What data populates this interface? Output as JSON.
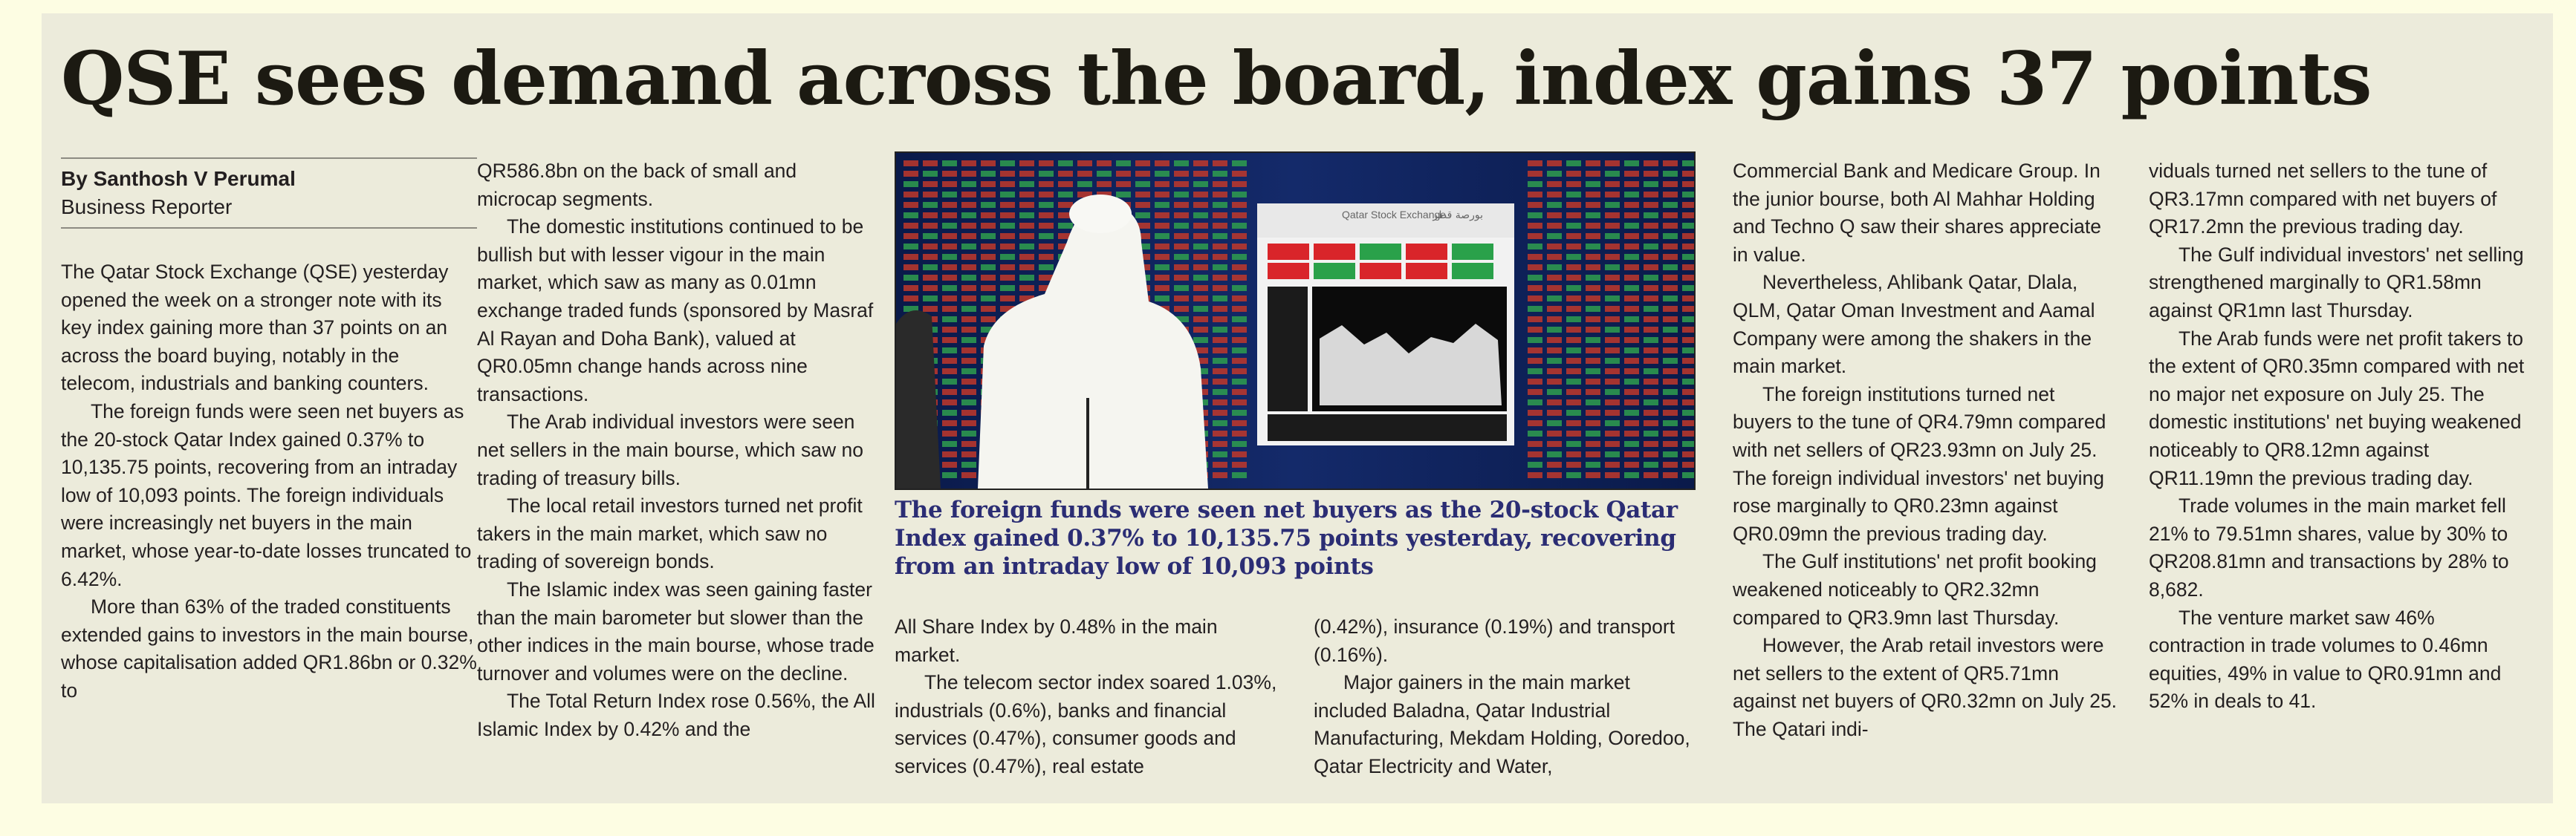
{
  "headline": "QSE sees demand across the board, index gains 37 points",
  "byline": "By Santhosh V Perumal",
  "role": "Business Reporter",
  "caption": "The foreign funds were seen net buyers as the 20-stock Qatar Index gained 0.37% to 10,135.75 points yesterday, recovering from an intraday low of 10,093 points",
  "photo": {
    "banner": "Qatar Stock Exchange",
    "banner_ar": "بورصة قطر"
  },
  "columns": {
    "col1": [
      "The Qatar Stock Exchange (QSE) yesterday opened the week on a stronger note with its key index gaining more than 37 points on an across the board buying, notably in the telecom, industrials and banking counters.",
      "The foreign funds were seen net buyers as the 20-stock Qatar Index gained 0.37% to 10,135.75 points, recovering from an intraday low of 10,093 points. The foreign individuals were increasingly net buyers in the main market, whose year-to-date losses truncated to 6.42%.",
      "More than 63% of the traded constituents extended gains to investors in the main bourse, whose capitalisation added QR1.86bn or 0.32% to"
    ],
    "col2": [
      "QR586.8bn on the back of small and microcap segments.",
      "The domestic institutions continued to be bullish but with lesser vigour in the main market, which saw as many as 0.01mn exchange traded funds (sponsored by Masraf Al Rayan and Doha Bank), valued at QR0.05mn change hands across nine transactions.",
      "The Arab individual investors were seen net sellers in the main bourse, which saw no trading of treasury bills.",
      "The local retail investors turned net profit takers in the main market, which saw no trading of sovereign bonds.",
      "The Islamic index was seen gaining faster than the main barometer but slower than the other indices in the main bourse, whose trade turnover and volumes were on the decline.",
      "The Total Return Index rose 0.56%, the All Islamic Index by 0.42% and the"
    ],
    "col3": [
      "All Share Index by 0.48% in the main market.",
      "The telecom sector index soared 1.03%, industrials (0.6%), banks and financial services (0.47%), consumer goods and services (0.47%), real estate"
    ],
    "col4": [
      "(0.42%), insurance (0.19%) and transport (0.16%).",
      "Major gainers in the main market included Baladna, Qatar Industrial Manufacturing, Mekdam Holding, Ooredoo, Qatar Electricity and Water,"
    ],
    "col5": [
      "Commercial Bank and Medicare Group. In the junior bourse, both Al Mahhar Holding and Techno Q saw their shares appreciate in value.",
      "Nevertheless, Ahlibank Qatar, Dlala, QLM, Qatar Oman Investment and Aamal Company were among the shakers in the main market.",
      "The foreign institutions turned net buyers to the tune of QR4.79mn compared with net sellers of QR23.93mn on July 25. The foreign individual investors' net buying rose marginally to QR0.23mn against QR0.09mn the previous trading day.",
      "The Gulf institutions' net profit booking weakened noticeably to QR2.32mn compared to QR3.9mn last Thursday.",
      "However, the Arab retail investors were net sellers to the extent of QR5.71mn against net buyers of QR0.32mn on July 25. The Qatari indi-"
    ],
    "col6": [
      "viduals turned net sellers to the tune of QR3.17mn compared with net buyers of QR17.2mn the previous trading day.",
      "The Gulf individual investors' net selling strengthened marginally to QR1.58mn against QR1mn last Thursday.",
      "The Arab funds were net profit takers to the extent of QR0.35mn compared with net no major net exposure on July 25. The domestic institutions' net buying weakened noticeably to QR8.12mn against QR11.19mn the previous trading day.",
      "Trade volumes in the main market fell 21% to 79.51mn shares, value by 30% to QR208.81mn and transactions by 28% to 8,682.",
      "The venture market saw 46% contraction in trade volumes to 0.46mn equities, 49% in value to QR0.91mn and 52% in deals to 41."
    ]
  }
}
